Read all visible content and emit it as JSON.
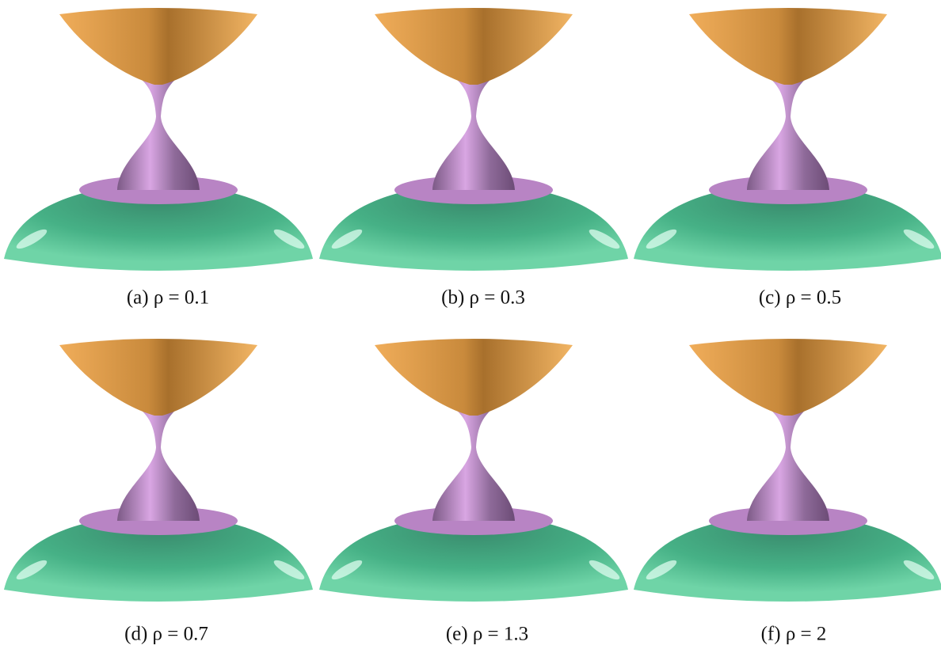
{
  "figure": {
    "panels": [
      {
        "caption": "(a) ρ = 0.1"
      },
      {
        "caption": "(b) ρ = 0.3"
      },
      {
        "caption": "(c) ρ = 0.5"
      },
      {
        "caption": "(d) ρ = 0.7"
      },
      {
        "caption": "(e) ρ = 1.3"
      },
      {
        "caption": "(f) ρ = 2"
      }
    ]
  }
}
